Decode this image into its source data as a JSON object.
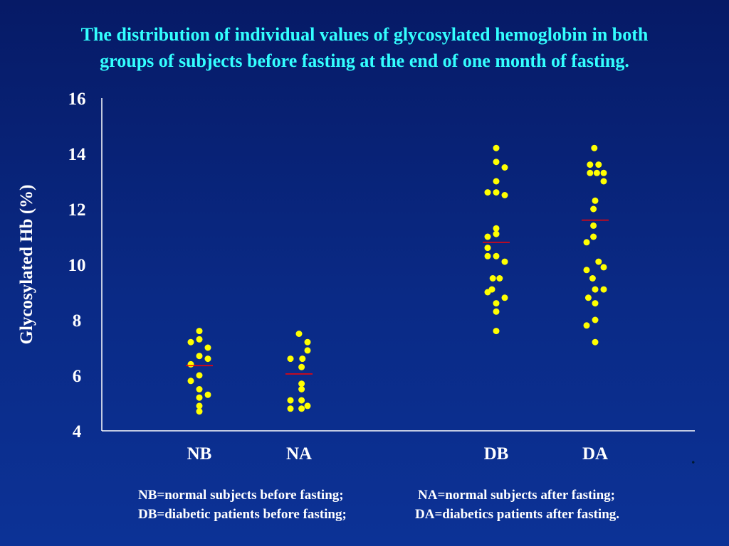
{
  "title": {
    "line1": "The distribution of individual values of glycosylated hemoglobin in both",
    "line2": "groups of subjects before fasting at the end of one month of fasting."
  },
  "legend": {
    "nb": "NB=normal subjects before fasting;",
    "na": "NA=normal subjects after fasting;",
    "db": "DB=diabetic patients before fasting;",
    "da": "DA=diabetics patients after fasting."
  },
  "trailing_mark": ".",
  "colors": {
    "title": "#33ffff",
    "points": "#ffff00",
    "mean_line": "#ff0000",
    "axis": "#ffffff",
    "text": "#ffffff"
  },
  "chart_data": {
    "type": "scatter",
    "title": "The distribution of individual values of glycosylated hemoglobin in both groups of subjects before fasting at the end of one month of fasting.",
    "xlabel": "",
    "ylabel": "Glycosylated Hb (%)",
    "ylim": [
      4,
      16
    ],
    "yticks": [
      4,
      6,
      8,
      10,
      12,
      14,
      16
    ],
    "categories": [
      "NB",
      "NA",
      "DB",
      "DA"
    ],
    "grid": false,
    "series": [
      {
        "name": "NB",
        "mean": 6.35,
        "points": [
          {
            "jitter": 0.0,
            "y": 7.6
          },
          {
            "jitter": -1.0,
            "y": 7.2
          },
          {
            "jitter": 0.0,
            "y": 7.3
          },
          {
            "jitter": 1.0,
            "y": 7.0
          },
          {
            "jitter": 0.0,
            "y": 6.7
          },
          {
            "jitter": 1.0,
            "y": 6.6
          },
          {
            "jitter": -1.0,
            "y": 6.4
          },
          {
            "jitter": 0.0,
            "y": 6.0
          },
          {
            "jitter": -1.0,
            "y": 5.8
          },
          {
            "jitter": 0.0,
            "y": 5.5
          },
          {
            "jitter": 1.0,
            "y": 5.3
          },
          {
            "jitter": 0.0,
            "y": 5.2
          },
          {
            "jitter": 0.0,
            "y": 4.9
          },
          {
            "jitter": 0.0,
            "y": 4.7
          }
        ]
      },
      {
        "name": "NA",
        "mean": 6.05,
        "points": [
          {
            "jitter": 0.0,
            "y": 7.5
          },
          {
            "jitter": 1.0,
            "y": 7.2
          },
          {
            "jitter": 1.0,
            "y": 6.9
          },
          {
            "jitter": -1.0,
            "y": 6.6
          },
          {
            "jitter": 0.4,
            "y": 6.6
          },
          {
            "jitter": 0.3,
            "y": 6.3
          },
          {
            "jitter": 0.3,
            "y": 5.7
          },
          {
            "jitter": 0.3,
            "y": 5.5
          },
          {
            "jitter": -1.0,
            "y": 5.1
          },
          {
            "jitter": 0.3,
            "y": 5.1
          },
          {
            "jitter": 1.0,
            "y": 4.9
          },
          {
            "jitter": -1.0,
            "y": 4.8
          },
          {
            "jitter": 0.3,
            "y": 4.8
          }
        ]
      },
      {
        "name": "DB",
        "mean": 10.8,
        "points": [
          {
            "jitter": 0.0,
            "y": 14.2
          },
          {
            "jitter": 0.0,
            "y": 13.7
          },
          {
            "jitter": 1.0,
            "y": 13.5
          },
          {
            "jitter": 0.0,
            "y": 13.0
          },
          {
            "jitter": -1.0,
            "y": 12.6
          },
          {
            "jitter": 0.0,
            "y": 12.6
          },
          {
            "jitter": 1.0,
            "y": 12.5
          },
          {
            "jitter": 0.0,
            "y": 11.3
          },
          {
            "jitter": -1.0,
            "y": 11.0
          },
          {
            "jitter": 0.0,
            "y": 11.1
          },
          {
            "jitter": -1.0,
            "y": 10.6
          },
          {
            "jitter": -1.0,
            "y": 10.3
          },
          {
            "jitter": 0.0,
            "y": 10.3
          },
          {
            "jitter": 1.0,
            "y": 10.1
          },
          {
            "jitter": -0.4,
            "y": 9.5
          },
          {
            "jitter": 0.4,
            "y": 9.5
          },
          {
            "jitter": -0.5,
            "y": 9.1
          },
          {
            "jitter": -1.0,
            "y": 9.0
          },
          {
            "jitter": 1.0,
            "y": 8.8
          },
          {
            "jitter": 0.0,
            "y": 8.6
          },
          {
            "jitter": 0.0,
            "y": 8.3
          },
          {
            "jitter": 0.0,
            "y": 7.6
          }
        ]
      },
      {
        "name": "DA",
        "mean": 11.6,
        "points": [
          {
            "jitter": -0.1,
            "y": 14.2
          },
          {
            "jitter": -0.6,
            "y": 13.6
          },
          {
            "jitter": 0.4,
            "y": 13.6
          },
          {
            "jitter": -0.6,
            "y": 13.3
          },
          {
            "jitter": 0.2,
            "y": 13.3
          },
          {
            "jitter": 1.0,
            "y": 13.3
          },
          {
            "jitter": 1.0,
            "y": 13.0
          },
          {
            "jitter": 0.0,
            "y": 12.3
          },
          {
            "jitter": -0.2,
            "y": 12.0
          },
          {
            "jitter": -0.2,
            "y": 11.4
          },
          {
            "jitter": -0.2,
            "y": 11.0
          },
          {
            "jitter": -1.0,
            "y": 10.8
          },
          {
            "jitter": 0.4,
            "y": 10.1
          },
          {
            "jitter": 1.0,
            "y": 9.9
          },
          {
            "jitter": -1.0,
            "y": 9.8
          },
          {
            "jitter": -0.3,
            "y": 9.5
          },
          {
            "jitter": 0.0,
            "y": 9.1
          },
          {
            "jitter": 1.0,
            "y": 9.1
          },
          {
            "jitter": -0.8,
            "y": 8.8
          },
          {
            "jitter": 0.0,
            "y": 8.6
          },
          {
            "jitter": 0.0,
            "y": 8.0
          },
          {
            "jitter": -1.0,
            "y": 7.8
          },
          {
            "jitter": 0.0,
            "y": 7.2
          }
        ]
      }
    ]
  }
}
